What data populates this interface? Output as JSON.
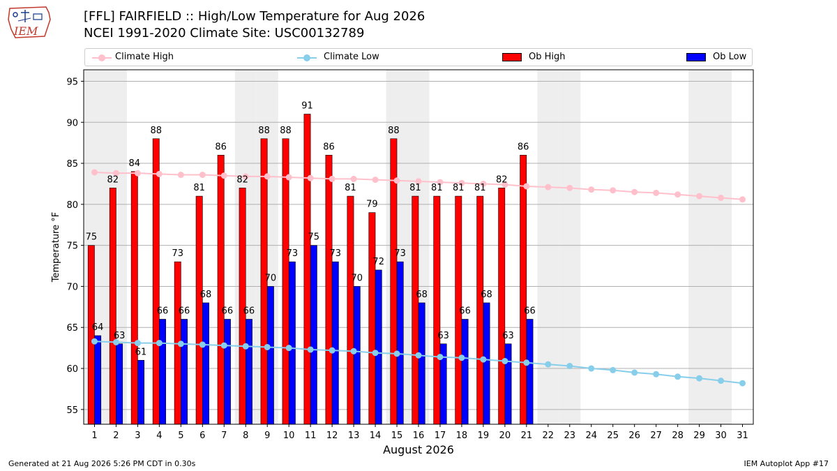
{
  "header": {
    "logo_text": "IEM",
    "title_line1": "[FFL] FAIRFIELD :: High/Low Temperature for Aug 2026",
    "title_line2": "NCEI 1991-2020 Climate Site: USC00132789"
  },
  "legend": {
    "climate_high": "Climate High",
    "climate_low": "Climate Low",
    "ob_high": "Ob High",
    "ob_low": "Ob Low"
  },
  "colors": {
    "climate_high": "#ffc0cb",
    "climate_low": "#87ceeb",
    "ob_high": "#ff0000",
    "ob_low": "#0000ff",
    "weekend_shade": "#eeeeee",
    "grid": "#b0b0b0"
  },
  "chart_data": {
    "type": "bar",
    "xlabel": "August 2026",
    "ylabel": "Temperature °F",
    "ylim": [
      53.2,
      96.4
    ],
    "yticks": [
      55,
      60,
      65,
      70,
      75,
      80,
      85,
      90,
      95
    ],
    "xlim": [
      0.5,
      31.5
    ],
    "days": [
      1,
      2,
      3,
      4,
      5,
      6,
      7,
      8,
      9,
      10,
      11,
      12,
      13,
      14,
      15,
      16,
      17,
      18,
      19,
      20,
      21,
      22,
      23,
      24,
      25,
      26,
      27,
      28,
      29,
      30,
      31
    ],
    "weekend_days": [
      1,
      2,
      8,
      9,
      15,
      16,
      22,
      23,
      29,
      30
    ],
    "grid": true,
    "legend_position": "top",
    "series": [
      {
        "name": "Ob High",
        "kind": "bar",
        "x": [
          1,
          2,
          3,
          4,
          5,
          6,
          7,
          8,
          9,
          10,
          11,
          12,
          13,
          14,
          15,
          16,
          17,
          18,
          19,
          20,
          21
        ],
        "values": [
          75,
          82,
          84,
          88,
          73,
          81,
          86,
          82,
          88,
          88,
          91,
          86,
          81,
          79,
          88,
          81,
          81,
          81,
          81,
          82,
          86
        ]
      },
      {
        "name": "Ob Low",
        "kind": "bar",
        "x": [
          1,
          2,
          3,
          4,
          5,
          6,
          7,
          8,
          9,
          10,
          11,
          12,
          13,
          14,
          15,
          16,
          17,
          18,
          19,
          20,
          21
        ],
        "values": [
          64,
          63,
          61,
          66,
          66,
          68,
          66,
          66,
          70,
          73,
          75,
          73,
          70,
          72,
          73,
          68,
          63,
          66,
          68,
          63,
          66
        ]
      },
      {
        "name": "Climate High",
        "kind": "line",
        "values": [
          83.9,
          83.8,
          83.8,
          83.7,
          83.6,
          83.6,
          83.5,
          83.4,
          83.4,
          83.3,
          83.2,
          83.1,
          83.1,
          83.0,
          82.9,
          82.8,
          82.7,
          82.6,
          82.5,
          82.4,
          82.2,
          82.1,
          82.0,
          81.8,
          81.7,
          81.5,
          81.4,
          81.2,
          81.0,
          80.8,
          80.6
        ]
      },
      {
        "name": "Climate Low",
        "kind": "line",
        "values": [
          63.3,
          63.2,
          63.1,
          63.1,
          63.0,
          62.9,
          62.8,
          62.7,
          62.6,
          62.5,
          62.3,
          62.2,
          62.1,
          61.9,
          61.8,
          61.6,
          61.4,
          61.3,
          61.1,
          60.9,
          60.7,
          60.5,
          60.3,
          60.0,
          59.8,
          59.5,
          59.3,
          59.0,
          58.8,
          58.5,
          58.2
        ]
      }
    ]
  },
  "footer": {
    "left": "Generated at 21 Aug 2026 5:26 PM CDT in 0.30s",
    "right": "IEM Autoplot App #17"
  }
}
